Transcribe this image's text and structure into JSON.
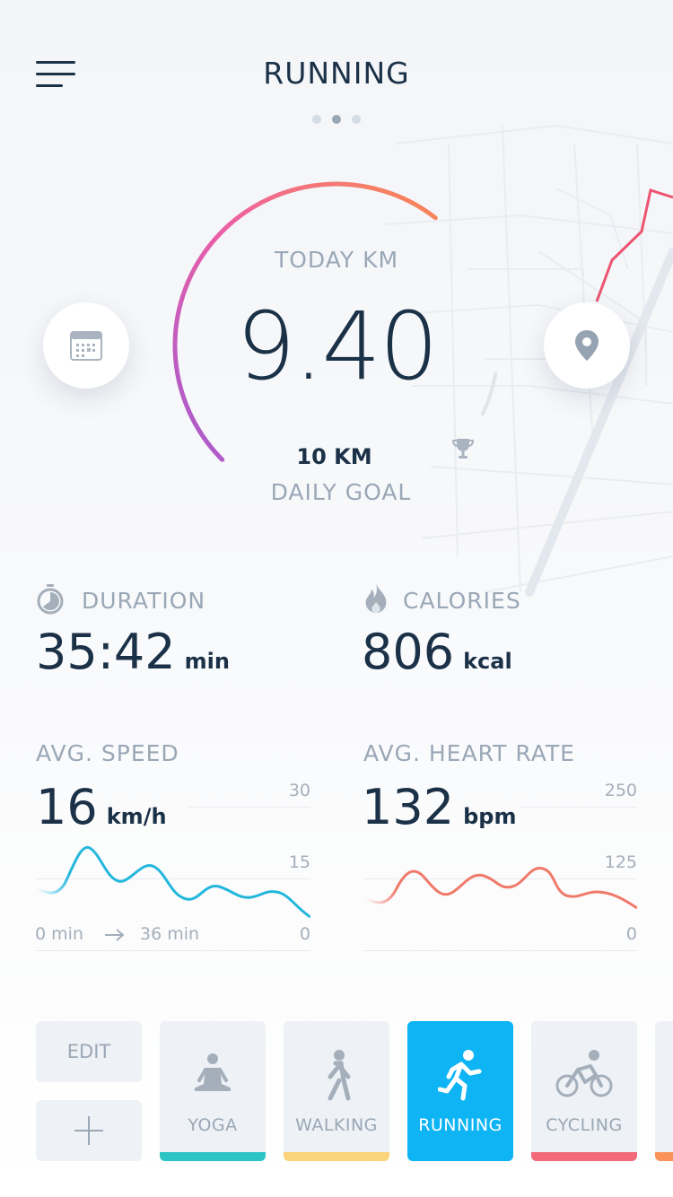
{
  "header": {
    "title": "RUNNING",
    "page_count": 3,
    "active_page": 2
  },
  "gauge": {
    "label": "TODAY KM",
    "value": "9.40",
    "goal_value": "10 KM",
    "goal_label": "DAILY GOAL",
    "progress": 0.94,
    "gradient_colors": [
      "#a35bd0",
      "#ec5fa6",
      "#f98a52"
    ]
  },
  "stats": {
    "duration": {
      "label": "DURATION",
      "value": "35:42",
      "unit": "min",
      "icon": "stopwatch-icon"
    },
    "calories": {
      "label": "CALORIES",
      "value": "806",
      "unit": "kcal",
      "icon": "flame-icon"
    }
  },
  "speed_chart": {
    "label": "AVG. SPEED",
    "value": "16",
    "unit": "km/h",
    "y_ticks": [
      "30",
      "15",
      "0"
    ],
    "x_start": "0 min",
    "x_end": "36 min",
    "color": "#24b7dc"
  },
  "heart_chart": {
    "label": "AVG. HEART RATE",
    "value": "132",
    "unit": "bpm",
    "y_ticks": [
      "250",
      "125",
      "0"
    ],
    "color": "#f07a6a"
  },
  "bottom": {
    "edit_label": "EDIT",
    "add_icon": "plus-icon",
    "activities": [
      {
        "label": "YOGA",
        "icon": "yoga-icon",
        "color": "#2cc4c4",
        "active": false
      },
      {
        "label": "WALKING",
        "icon": "walking-icon",
        "color": "#fbd37a",
        "active": false
      },
      {
        "label": "RUNNING",
        "icon": "running-icon",
        "color": "#0fb4f5",
        "active": true
      },
      {
        "label": "CYCLING",
        "icon": "cycling-icon",
        "color": "#f26a7a",
        "active": false
      }
    ]
  },
  "colors": {
    "accent": "#0fb4f5",
    "text_dark": "#1b3147",
    "text_muted": "#9aa7b6"
  }
}
